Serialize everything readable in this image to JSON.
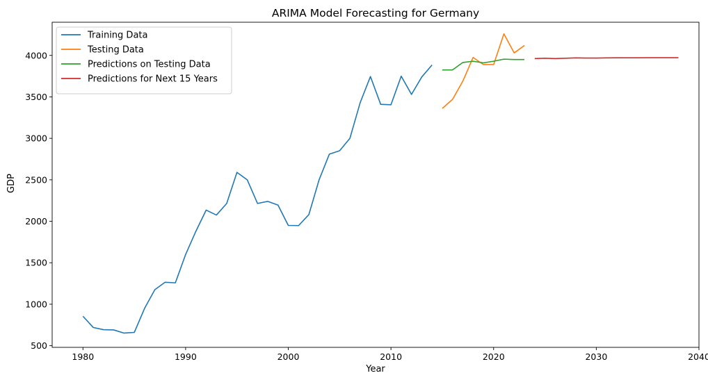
{
  "chart_data": {
    "type": "line",
    "title": "ARIMA Model Forecasting for Germany",
    "xlabel": "Year",
    "ylabel": "GDP",
    "xlim": [
      1977,
      2040
    ],
    "ylim": [
      480,
      4400
    ],
    "xticks": [
      1980,
      1990,
      2000,
      2010,
      2020,
      2030,
      2040
    ],
    "yticks": [
      500,
      1000,
      1500,
      2000,
      2500,
      3000,
      3500,
      4000
    ],
    "grid": false,
    "legend_position": "top-left",
    "series": [
      {
        "name": "Training Data",
        "color": "#1f77b4",
        "x": [
          1980,
          1981,
          1982,
          1983,
          1984,
          1985,
          1986,
          1987,
          1988,
          1989,
          1990,
          1991,
          1992,
          1993,
          1994,
          1995,
          1996,
          1997,
          1998,
          1999,
          2000,
          2001,
          2002,
          2003,
          2004,
          2005,
          2006,
          2007,
          2008,
          2009,
          2010,
          2011,
          2012,
          2013,
          2014
        ],
        "y": [
          855,
          720,
          693,
          690,
          652,
          660,
          950,
          1175,
          1265,
          1258,
          1600,
          1880,
          2135,
          2075,
          2215,
          2590,
          2500,
          2215,
          2240,
          2195,
          1950,
          1948,
          2080,
          2500,
          2810,
          2850,
          3000,
          3430,
          3745,
          3410,
          3405,
          3750,
          3530,
          3740,
          3885
        ]
      },
      {
        "name": "Testing Data",
        "color": "#ff7f0e",
        "x": [
          2015,
          2016,
          2017,
          2018,
          2019,
          2020,
          2021,
          2022,
          2023
        ],
        "y": [
          3360,
          3470,
          3690,
          3975,
          3890,
          3890,
          4260,
          4030,
          4120
        ]
      },
      {
        "name": "Predictions on Testing Data",
        "color": "#2ca02c",
        "x": [
          2015,
          2016,
          2017,
          2018,
          2019,
          2020,
          2021,
          2022,
          2023
        ],
        "y": [
          3825,
          3825,
          3915,
          3930,
          3910,
          3930,
          3955,
          3950,
          3950
        ]
      },
      {
        "name": "Predictions for Next 15 Years",
        "color": "#d62728",
        "x": [
          2024,
          2025,
          2026,
          2027,
          2028,
          2029,
          2030,
          2031,
          2032,
          2033,
          2034,
          2035,
          2036,
          2037,
          2038
        ],
        "y": [
          3962,
          3966,
          3962,
          3966,
          3970,
          3968,
          3968,
          3970,
          3971,
          3971,
          3971,
          3972,
          3972,
          3972,
          3972
        ]
      }
    ]
  }
}
